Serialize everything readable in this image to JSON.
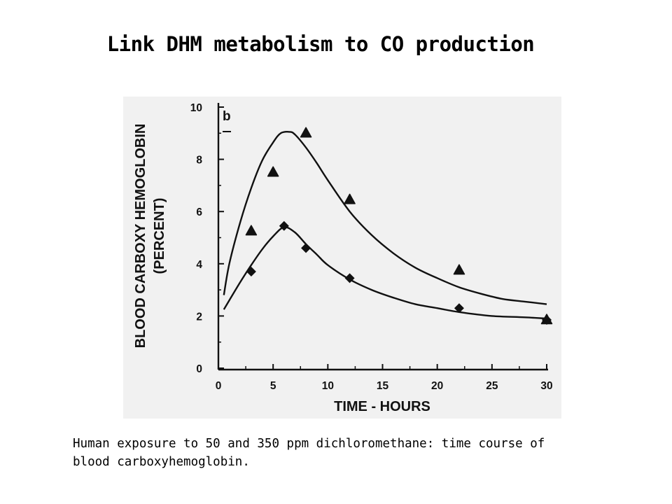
{
  "slide": {
    "title": "Link DHM metabolism to CO production",
    "caption_line1": "Human exposure to 50 and 350 ppm dichloromethane: time course of",
    "caption_line2": "blood carboxyhemoglobin."
  },
  "chart_data": {
    "type": "scatter",
    "panel_label": "b",
    "xlabel": "TIME - HOURS",
    "ylabel_line1": "BLOOD CARBOXY HEMOGLOBIN",
    "ylabel_line2": "(PERCENT)",
    "xlim": [
      0,
      30
    ],
    "ylim": [
      0,
      10
    ],
    "x_ticks": [
      0,
      5,
      10,
      15,
      20,
      25,
      30
    ],
    "y_ticks": [
      0,
      2,
      4,
      6,
      8,
      10
    ],
    "series": [
      {
        "marker": "triangle",
        "points": [
          [
            3,
            5.25
          ],
          [
            5,
            7.5
          ],
          [
            8,
            9.0
          ],
          [
            12,
            6.45
          ],
          [
            22,
            3.75
          ],
          [
            30,
            1.85
          ]
        ],
        "fit_curve": [
          [
            0.5,
            2.8
          ],
          [
            1,
            4.0
          ],
          [
            2,
            5.6
          ],
          [
            3,
            6.9
          ],
          [
            4,
            7.95
          ],
          [
            5,
            8.65
          ],
          [
            5.7,
            9.0
          ],
          [
            6.5,
            9.05
          ],
          [
            7,
            8.95
          ],
          [
            8,
            8.45
          ],
          [
            9,
            7.85
          ],
          [
            10,
            7.2
          ],
          [
            12,
            6.0
          ],
          [
            14,
            5.1
          ],
          [
            16,
            4.4
          ],
          [
            18,
            3.85
          ],
          [
            20,
            3.45
          ],
          [
            22,
            3.1
          ],
          [
            24,
            2.85
          ],
          [
            26,
            2.65
          ],
          [
            28,
            2.55
          ],
          [
            30,
            2.45
          ]
        ]
      },
      {
        "marker": "diamond",
        "points": [
          [
            3,
            3.7
          ],
          [
            6,
            5.45
          ],
          [
            8,
            4.6
          ],
          [
            12,
            3.45
          ],
          [
            22,
            2.3
          ],
          [
            30,
            1.85
          ]
        ],
        "fit_curve": [
          [
            0.5,
            2.25
          ],
          [
            1,
            2.6
          ],
          [
            2,
            3.3
          ],
          [
            3,
            3.95
          ],
          [
            4,
            4.55
          ],
          [
            5,
            5.05
          ],
          [
            6,
            5.4
          ],
          [
            7,
            5.2
          ],
          [
            8,
            4.75
          ],
          [
            9,
            4.35
          ],
          [
            10,
            3.95
          ],
          [
            12,
            3.4
          ],
          [
            14,
            3.0
          ],
          [
            16,
            2.7
          ],
          [
            18,
            2.45
          ],
          [
            20,
            2.3
          ],
          [
            22,
            2.15
          ],
          [
            25,
            2.0
          ],
          [
            28,
            1.95
          ],
          [
            30,
            1.9
          ]
        ]
      }
    ]
  }
}
